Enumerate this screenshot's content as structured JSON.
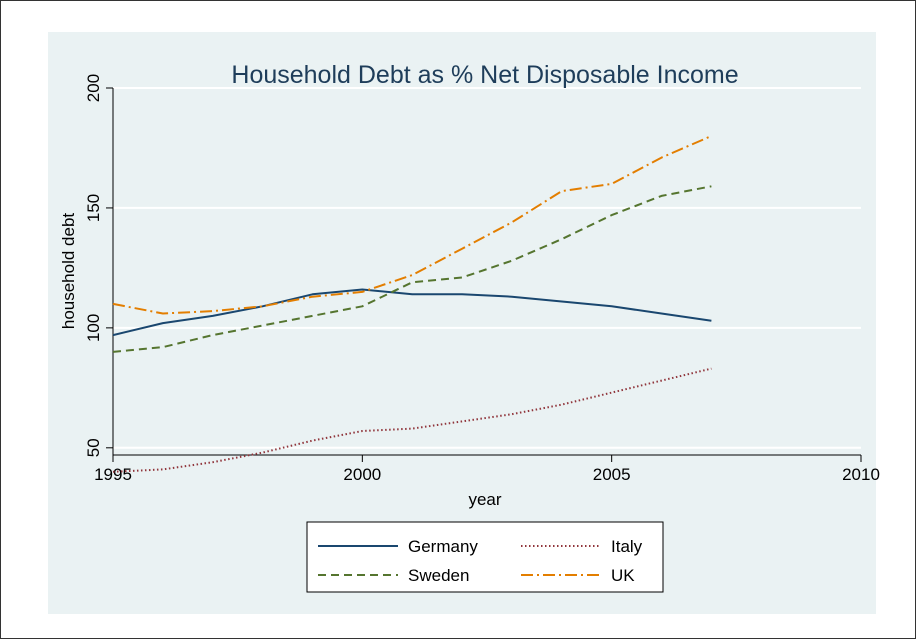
{
  "chart_data": {
    "type": "line",
    "title": "Household Debt as % Net Disposable Income",
    "xlabel": "year",
    "ylabel": "household debt",
    "xlim": [
      1995,
      2010
    ],
    "ylim": [
      47,
      200
    ],
    "x_ticks": [
      1995,
      2000,
      2005,
      2010
    ],
    "y_ticks": [
      50,
      100,
      150,
      200
    ],
    "grid": "horizontal",
    "legend_position": "bottom",
    "colors": {
      "Germany": "#1a476f",
      "Sweden": "#55752f",
      "Italy": "#90353b",
      "UK": "#e37e00"
    },
    "x": [
      1995,
      1996,
      1997,
      1998,
      1999,
      2000,
      2001,
      2002,
      2003,
      2004,
      2005,
      2006,
      2007
    ],
    "series": [
      {
        "name": "Germany",
        "dash": "solid",
        "values": [
          97,
          102,
          105,
          109,
          114,
          116,
          114,
          114,
          113,
          111,
          109,
          106,
          103
        ]
      },
      {
        "name": "Sweden",
        "dash": "dashed",
        "values": [
          90,
          92,
          97,
          101,
          105,
          109,
          119,
          121,
          128,
          137,
          147,
          155,
          159
        ]
      },
      {
        "name": "Italy",
        "dash": "dotted",
        "values": [
          40,
          41,
          44,
          48,
          53,
          57,
          58,
          61,
          64,
          68,
          73,
          78,
          83
        ]
      },
      {
        "name": "UK",
        "dash": "dashdot",
        "values": [
          110,
          106,
          107,
          109,
          113,
          115,
          122,
          133,
          144,
          157,
          160,
          171,
          180
        ]
      }
    ],
    "legend_order": [
      "Germany",
      "Italy",
      "Sweden",
      "UK"
    ]
  }
}
